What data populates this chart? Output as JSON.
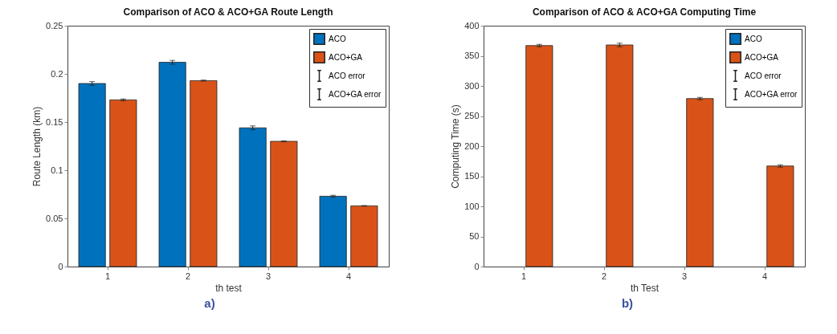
{
  "chart_data": [
    {
      "type": "bar",
      "title": "Comparison of ACO & ACO+GA Route Length",
      "xlabel": "th test",
      "ylabel": "Route Length (km)",
      "categories": [
        "1",
        "2",
        "3",
        "4"
      ],
      "series": [
        {
          "name": "ACO",
          "color": "#0072bd",
          "values": [
            0.19,
            0.212,
            0.144,
            0.073
          ],
          "errors": [
            0.002,
            0.002,
            0.002,
            0.001
          ]
        },
        {
          "name": "ACO+GA",
          "color": "#d95319",
          "values": [
            0.173,
            0.193,
            0.13,
            0.063
          ],
          "errors": [
            0.001,
            0.0005,
            0.0005,
            0.0003
          ]
        }
      ],
      "ylim": [
        0,
        0.25
      ],
      "yticks": [
        0,
        0.05,
        0.1,
        0.15,
        0.2,
        0.25
      ],
      "grid": false,
      "legend": "top right",
      "annotations": [
        "ACO error",
        "ACO+GA error",
        "a)"
      ]
    },
    {
      "type": "bar",
      "title": "Comparison of ACO & ACO+GA Computing Time",
      "xlabel": "th Test",
      "ylabel": "Computing Time (s)",
      "categories": [
        "1",
        "2",
        "3",
        "4"
      ],
      "series": [
        {
          "name": "ACO",
          "color": "#0072bd",
          "values": [
            0,
            0,
            0,
            0
          ]
        },
        {
          "name": "ACO+GA",
          "color": "#d95319",
          "values": [
            367,
            368,
            279,
            167
          ],
          "errors": [
            2,
            3,
            2,
            2
          ]
        }
      ],
      "ylim": [
        0,
        400
      ],
      "yticks": [
        0,
        50,
        100,
        150,
        200,
        250,
        300,
        350,
        400
      ],
      "grid": false,
      "legend": "top right",
      "annotations": [
        "ACO error",
        "ACO+GA error",
        "b)"
      ]
    }
  ]
}
